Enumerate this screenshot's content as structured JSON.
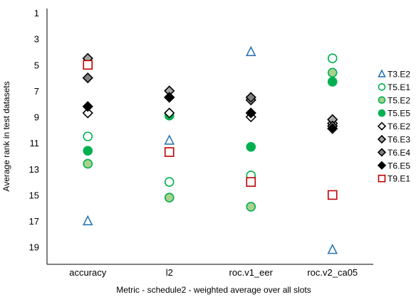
{
  "chart_data": {
    "type": "scatter",
    "title": "",
    "xlabel": "Metric - schedule2 - weighted average over all slots",
    "ylabel": "Average rank in test datasets",
    "categories": [
      "accuracy",
      "l2",
      "roc.v1_eer",
      "roc.v2_ca05"
    ],
    "y_ticks": [
      "1",
      "3",
      "5",
      "7",
      "9",
      "11",
      "13",
      "15",
      "17",
      "19"
    ],
    "ylim": [
      1,
      20
    ],
    "y_reversed": true,
    "grid": false,
    "legend_position": "right",
    "series": [
      {
        "name": "T3.E2",
        "marker": "triangle",
        "stroke": "#2E75B6",
        "fill": "none",
        "values": [
          17.0,
          10.8,
          4.0,
          19.2
        ]
      },
      {
        "name": "T5.E1",
        "marker": "circle",
        "stroke": "#00B050",
        "fill": "none",
        "values": [
          10.5,
          14.0,
          13.5,
          4.5
        ]
      },
      {
        "name": "T5.E2",
        "marker": "circle",
        "stroke": "#00B050",
        "fill": "#A9D18E",
        "values": [
          12.6,
          15.2,
          15.9,
          5.6
        ]
      },
      {
        "name": "T5.E5",
        "marker": "circle",
        "stroke": "#00B050",
        "fill": "#00B050",
        "values": [
          11.6,
          8.9,
          11.3,
          6.3
        ]
      },
      {
        "name": "T6.E2",
        "marker": "diamond",
        "stroke": "#000000",
        "fill": "#ffffff",
        "values": [
          8.7,
          8.7,
          9.0,
          9.5
        ]
      },
      {
        "name": "T6.E3",
        "marker": "diamond",
        "stroke": "#000000",
        "fill": "#A6A6A6",
        "values": [
          4.5,
          7.0,
          7.7,
          9.2
        ]
      },
      {
        "name": "T6.E4",
        "marker": "diamond",
        "stroke": "#000000",
        "fill": "#808080",
        "values": [
          6.0,
          7.5,
          7.5,
          9.7
        ]
      },
      {
        "name": "T6.E5",
        "marker": "diamond",
        "stroke": "#000000",
        "fill": "#000000",
        "values": [
          8.2,
          7.5,
          8.7,
          9.9
        ]
      },
      {
        "name": "T9.E1",
        "marker": "square",
        "stroke": "#C00000",
        "fill": "#ffffff",
        "values": [
          5.0,
          11.7,
          14.0,
          15.0
        ]
      }
    ]
  }
}
